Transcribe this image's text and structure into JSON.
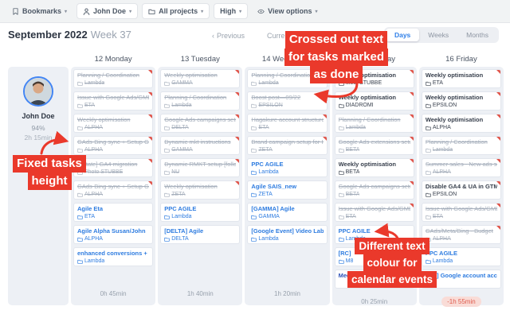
{
  "toolbar": {
    "caret": "▾",
    "items": [
      {
        "icon": "bookmark",
        "label": "Bookmarks",
        "pill": false
      },
      {
        "icon": "person",
        "label": "John Doe",
        "pill": true
      },
      {
        "icon": "folder",
        "label": "All projects",
        "pill": true
      },
      {
        "label": "High",
        "pill": true
      },
      {
        "icon": "eye",
        "label": "View options",
        "pill": false
      }
    ]
  },
  "header": {
    "month_title": "September 2022",
    "week_label": "Week 37",
    "prev_chevron": "‹",
    "prev": "Previous",
    "current": "Current",
    "tabs": [
      {
        "label": "Days",
        "active": true
      },
      {
        "label": "Weeks",
        "active": false
      },
      {
        "label": "Months",
        "active": false
      }
    ]
  },
  "sidebar": {
    "name": "John Doe",
    "completion": "94%",
    "time": "2h 15min"
  },
  "board": {
    "columns": [
      {
        "day": "12 Monday",
        "total": "0h 45min",
        "tasks": [
          {
            "title": "Planning / Coordination",
            "project": "Lambda",
            "state": "done"
          },
          {
            "title": "Issue with Google Ads/GMB",
            "project": "ETA",
            "state": "done"
          },
          {
            "title": "Weekly optimisation",
            "project": "ALPHA",
            "state": "done"
          },
          {
            "title": "GAds-Bing sync + Setup GA4",
            "project": "ALPHA",
            "state": "done"
          },
          {
            "title": "[Estate] GA4 migration",
            "project": "Photo STUBBE",
            "state": "done"
          },
          {
            "title": "GAds-Bing sync + Setup GA4",
            "project": "ALPHA",
            "state": "done"
          },
          {
            "title": "Agile Eta",
            "project": "ETA",
            "state": "event"
          },
          {
            "title": "Agile Alpha Susan/John",
            "project": "ALPHA",
            "state": "event"
          },
          {
            "title": "enhanced conversions +",
            "project": "Lambda",
            "state": "event"
          }
        ]
      },
      {
        "day": "13 Tuesday",
        "total": "1h 40min",
        "tasks": [
          {
            "title": "Weekly optimisation",
            "project": "GAMMA",
            "state": "done"
          },
          {
            "title": "Planning / Coordination",
            "project": "Lambda",
            "state": "done"
          },
          {
            "title": "Google Ads campaigns setup",
            "project": "DELTA",
            "state": "done"
          },
          {
            "title": "Dynamic mkt instructions",
            "project": "GAMMA",
            "state": "done"
          },
          {
            "title": "Dynamic RMKT setup [follow up",
            "project": "NU",
            "state": "done"
          },
          {
            "title": "Weekly optimisation",
            "project": "ZETA",
            "state": "done"
          },
          {
            "title": "PPC AGILE",
            "project": "Lambda",
            "state": "event"
          },
          {
            "title": "[DELTA] Agile",
            "project": "DELTA",
            "state": "event"
          }
        ]
      },
      {
        "day": "14 Wednesday",
        "total": "1h 20min",
        "tasks": [
          {
            "title": "Planning / Coordination",
            "project": "Lambda",
            "state": "done"
          },
          {
            "title": "Boost post—09/22",
            "project": "EPSILON",
            "state": "done"
          },
          {
            "title": "Hagakure account structure",
            "project": "ETA",
            "state": "done"
          },
          {
            "title": "Brand campaign setup for Italy",
            "project": "ZETA",
            "state": "done"
          },
          {
            "title": "PPC AGILE",
            "project": "Lambda",
            "state": "event"
          },
          {
            "title": "Agile SAIS_new",
            "project": "ZETA",
            "state": "event"
          },
          {
            "title": "[GAMMA] Agile",
            "project": "GAMMA",
            "state": "event"
          },
          {
            "title": "[Google Event] Video Lab",
            "project": "Lambda",
            "state": "event"
          }
        ]
      },
      {
        "day": "15 Thursday",
        "total": "0h 25min",
        "tasks": [
          {
            "title": "Weekly optimisation",
            "project": "Meta STUBBE",
            "state": "todo"
          },
          {
            "title": "Weekly optimisation",
            "project": "DIADROMI",
            "state": "todo"
          },
          {
            "title": "Planning / Coordination",
            "project": "Lambda",
            "state": "done"
          },
          {
            "title": "Google Ads extensions setup",
            "project": "BETA",
            "state": "done"
          },
          {
            "title": "Weekly optimisation",
            "project": "BETA",
            "state": "todo"
          },
          {
            "title": "Google Ads campaigns setup",
            "project": "BETA",
            "state": "done"
          },
          {
            "title": "Issue with Google Ads/GMB",
            "project": "ETA",
            "state": "done"
          },
          {
            "title": "PPC AGILE",
            "project": "Lambda",
            "state": "event"
          },
          {
            "title": "[RC]",
            "project": "M8",
            "state": "event"
          },
          {
            "title": "Meeting Jo",
            "project": "",
            "state": "event2"
          }
        ]
      },
      {
        "day": "16 Friday",
        "total": "-1h 55min",
        "tasks": [
          {
            "title": "Weekly optimisation",
            "project": "ETA",
            "state": "todo"
          },
          {
            "title": "Weekly optimisation",
            "project": "EPSILON",
            "state": "todo"
          },
          {
            "title": "Weekly optimisation",
            "project": "ALPHA",
            "state": "todo"
          },
          {
            "title": "Planning / Coordination",
            "project": "Lambda",
            "state": "done"
          },
          {
            "title": "Summer sales - New ads setup",
            "project": "ALPHA",
            "state": "done"
          },
          {
            "title": "Disable GA4 & UA in GTM",
            "project": "EPSILON",
            "state": "todo"
          },
          {
            "title": "Issue with Google Ads/GMB",
            "project": "ETA",
            "state": "done"
          },
          {
            "title": "GAds/Meta/Bing - Budget",
            "project": "ALPHA",
            "state": "done"
          },
          {
            "title": "PPC AGILE",
            "project": "Lambda",
            "state": "event"
          },
          {
            "title": "[Eta] Google account access",
            "project": "",
            "state": "event"
          }
        ]
      }
    ]
  },
  "annotations": [
    {
      "lines": [
        "Crossed out text",
        "for tasks marked",
        "as done"
      ]
    },
    {
      "lines": [
        "Fixed tasks",
        "height"
      ]
    },
    {
      "lines": [
        "Different text",
        "colour for",
        "calendar events"
      ]
    }
  ],
  "colors": {
    "annotation_red": "#ea392b",
    "event_blue": "#2e7ce0",
    "calendar_event_blue": "#2d52b8",
    "done_gray": "#a6afbc",
    "task_dark": "#39414e",
    "corner_red": "#e0544a",
    "active_tab_blue": "#2f7fe8",
    "negative_badge_bg": "#f9dcd7",
    "negative_badge_text": "#df5a4c",
    "panel_bg": "#edf0f5"
  }
}
